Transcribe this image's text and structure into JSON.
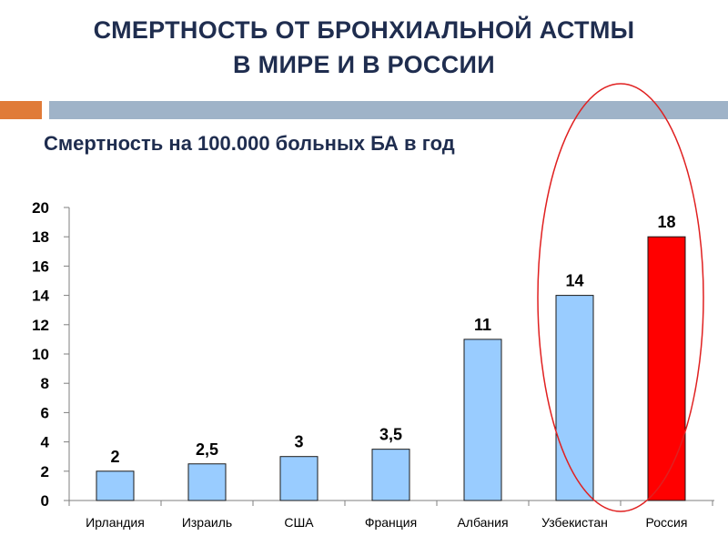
{
  "slide": {
    "title_line1": "СМЕРТНОСТЬ ОТ БРОНХИАЛЬНОЙ АСТМЫ",
    "title_line2": "В МИРЕ И В РОССИИ",
    "subtitle": "Смертность на 100.000 больных БА в год",
    "accent_color": "#e07b39",
    "rule_color": "#9fb3c8"
  },
  "chart_data": {
    "type": "bar",
    "categories": [
      "Ирландия",
      "Израиль",
      "США",
      "Франция",
      "Албания",
      "Узбекистан",
      "Россия"
    ],
    "values": [
      2,
      2.5,
      3,
      3.5,
      11,
      14,
      18
    ],
    "value_labels": [
      "2",
      "2,5",
      "3",
      "3,5",
      "11",
      "14",
      "18"
    ],
    "ylim": [
      0,
      20
    ],
    "yticks": [
      0,
      2,
      4,
      6,
      8,
      10,
      12,
      14,
      16,
      18,
      20
    ],
    "colors": {
      "default": "#99ccff",
      "highlight": "#ff0000",
      "highlight_category": "Россия",
      "ellipse": "#e02020"
    },
    "highlight_ellipse_around": [
      "Узбекистан",
      "Россия"
    ]
  }
}
